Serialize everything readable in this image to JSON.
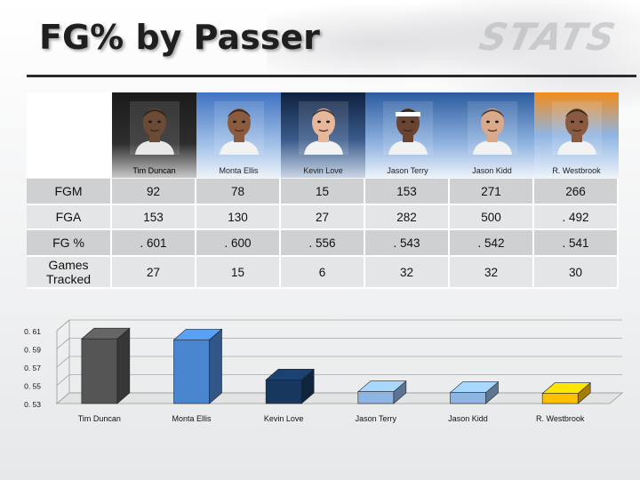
{
  "slide": {
    "title": "FG% by Passer",
    "logo_text": "STATS"
  },
  "players": [
    {
      "name": "Tim Duncan",
      "bg": "dark"
    },
    {
      "name": "Monta Ellis",
      "bg": "blue"
    },
    {
      "name": "Kevin Love",
      "bg": "navy"
    },
    {
      "name": "Jason Terry",
      "bg": "sky"
    },
    {
      "name": "Jason Kidd",
      "bg": "sky"
    },
    {
      "name": "R. Westbrook",
      "bg": "orange"
    }
  ],
  "table": {
    "rows": [
      {
        "label": "FGM",
        "values": [
          "92",
          "78",
          "15",
          "153",
          "271",
          "266"
        ]
      },
      {
        "label": "FGA",
        "values": [
          "153",
          "130",
          "27",
          "282",
          "500",
          ". 492"
        ]
      },
      {
        "label": "FG %",
        "values": [
          ". 601",
          ". 600",
          ". 556",
          ". 543",
          ". 542",
          ". 541"
        ]
      },
      {
        "label": "Games Tracked",
        "values": [
          "27",
          "15",
          "6",
          "32",
          "32",
          "30"
        ]
      }
    ]
  },
  "chart_data": {
    "type": "bar",
    "categories": [
      "Tim Duncan",
      "Monta Ellis",
      "Kevin Love",
      "Jason Terry",
      "Jason Kidd",
      "R. Westbrook"
    ],
    "values": [
      0.601,
      0.6,
      0.556,
      0.543,
      0.542,
      0.541
    ],
    "colors": [
      "#555555",
      "#4a86cf",
      "#17375e",
      "#8db4e2",
      "#8db4e2",
      "#ffc000"
    ],
    "ylim": [
      0.53,
      0.61
    ],
    "yticks": [
      "0. 53",
      "0. 55",
      "0. 57",
      "0. 59",
      "0. 61"
    ],
    "ytick_values": [
      0.53,
      0.55,
      0.57,
      0.59,
      0.61
    ],
    "style": "3d-column",
    "grid": true,
    "legend": "none",
    "title": "",
    "xlabel": "",
    "ylabel": ""
  }
}
